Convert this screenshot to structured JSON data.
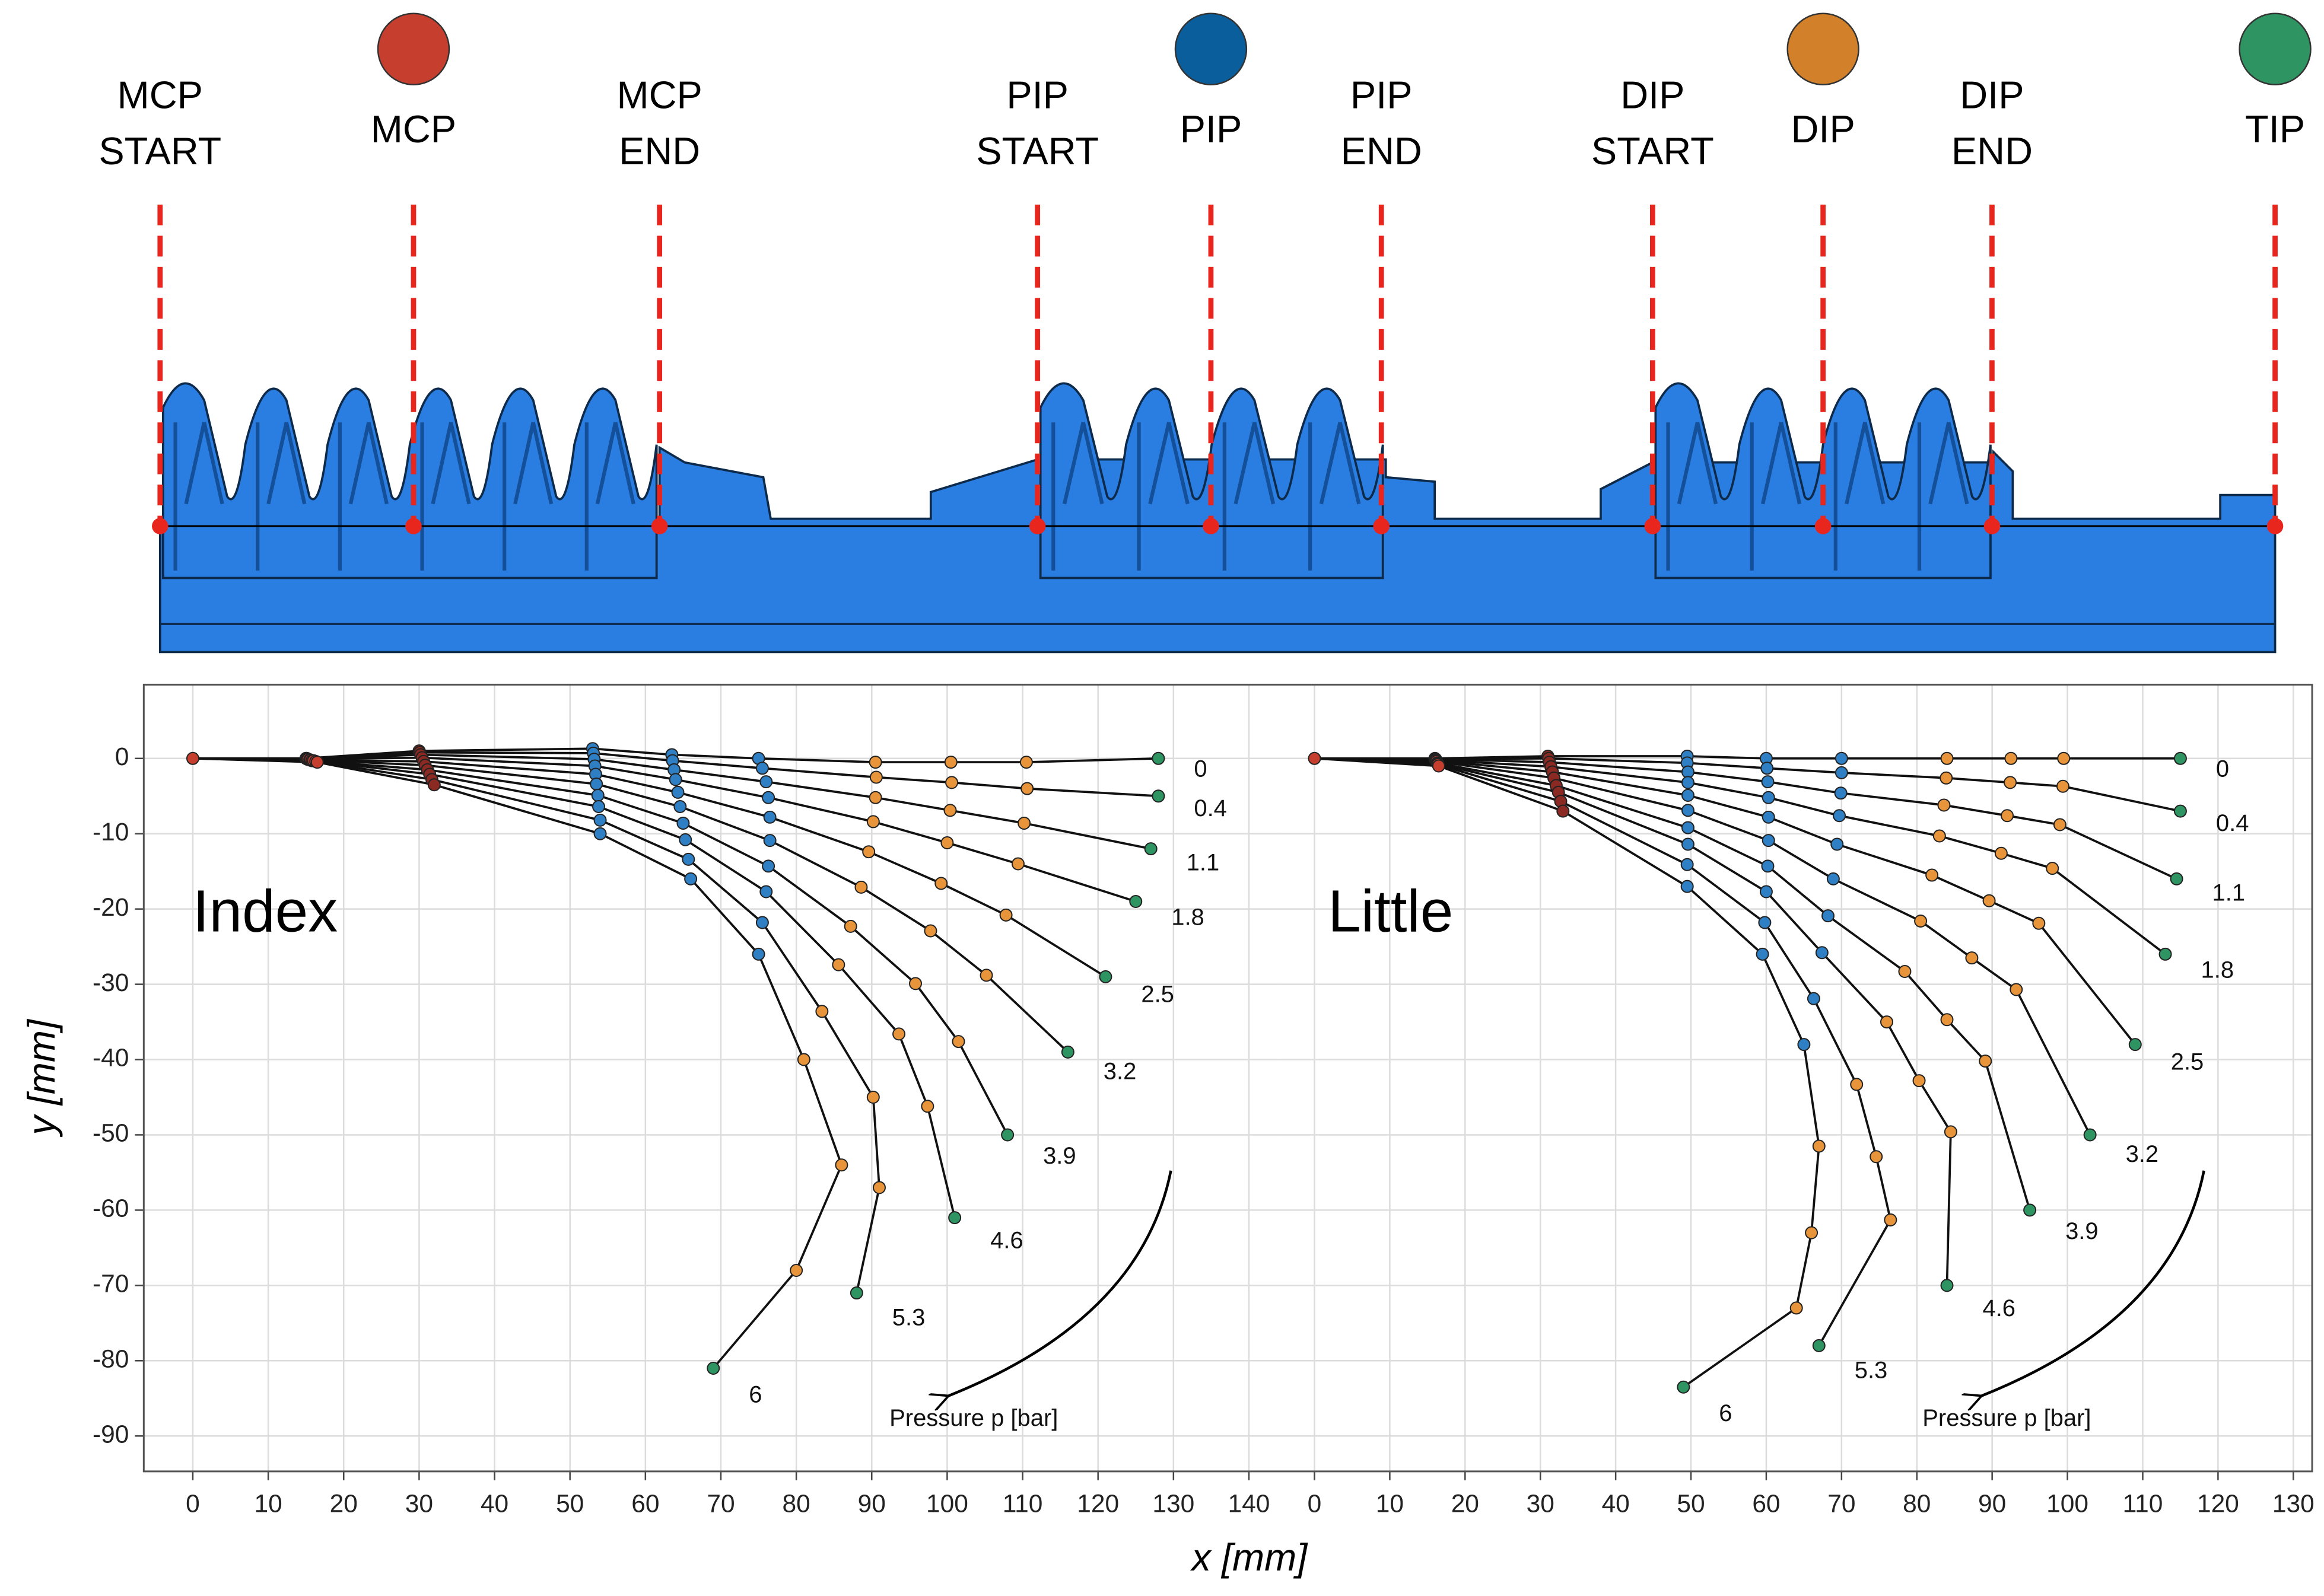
{
  "diagram": {
    "items": [
      {
        "lines": [
          "MCP",
          "START"
        ]
      },
      {
        "lines": [
          "MCP"
        ],
        "color": "#c63f2e"
      },
      {
        "lines": [
          "MCP",
          "END"
        ]
      },
      {
        "lines": [
          "PIP",
          "START"
        ]
      },
      {
        "lines": [
          "PIP"
        ],
        "color": "#0a5e9c"
      },
      {
        "lines": [
          "PIP",
          "END"
        ]
      },
      {
        "lines": [
          "DIP",
          "START"
        ]
      },
      {
        "lines": [
          "DIP"
        ],
        "color": "#d2802a"
      },
      {
        "lines": [
          "DIP",
          "END"
        ]
      },
      {
        "lines": [
          "TIP"
        ],
        "color": "#2e9462"
      }
    ]
  },
  "xlabel": "x [mm]",
  "ylabel": "y [mm]",
  "chart_data": [
    {
      "type": "scatter",
      "label": "Index",
      "annotation": "Pressure p [bar]",
      "xlim": [
        -6.5,
        144
      ],
      "ylim": [
        -94.7,
        9.8
      ],
      "xticks": [
        0,
        10,
        20,
        30,
        40,
        50,
        60,
        70,
        80,
        90,
        100,
        110,
        120,
        130,
        140
      ],
      "yticks": [
        0,
        -10,
        -20,
        -30,
        -40,
        -50,
        -60,
        -70,
        -80,
        -90
      ],
      "grid": true,
      "point_labels": [
        0,
        0.4,
        1.1,
        1.8,
        2.5,
        3.2,
        3.9,
        4.6,
        5.3,
        6
      ],
      "series": [
        {
          "color": "#c63f2e",
          "x": [
            0
          ],
          "values": [
            0
          ]
        },
        {
          "color": "#c63f2e",
          "x": [
            15,
            15.1,
            15.2,
            15.3,
            15.5,
            15.6,
            15.8,
            16,
            16.3,
            16.5
          ],
          "values": [
            0,
            0,
            -0.1,
            -0.1,
            -0.2,
            -0.2,
            -0.3,
            -0.3,
            -0.4,
            -0.5
          ]
        },
        {
          "color": "#8a2a22",
          "x": [
            30,
            30.1,
            30.2,
            30.4,
            30.6,
            30.8,
            31.1,
            31.4,
            31.7,
            32
          ],
          "values": [
            1,
            0.8,
            0.5,
            0.1,
            -0.4,
            -0.9,
            -1.5,
            -2.1,
            -2.8,
            -3.5
          ]
        },
        {
          "color": "#2f7fc4",
          "x": [
            53,
            53.1,
            53.2,
            53.3,
            53.4,
            53.5,
            53.7,
            53.8,
            54,
            54
          ],
          "values": [
            1.3,
            0.7,
            -0.1,
            -1,
            -2.1,
            -3.4,
            -4.9,
            -6.4,
            -8.2,
            -10
          ]
        },
        {
          "color": "#2f7fc4",
          "x": [
            63.5,
            63.6,
            63.8,
            64,
            64.3,
            64.6,
            65,
            65.3,
            65.7,
            66
          ],
          "values": [
            0.5,
            -0.3,
            -1.5,
            -2.8,
            -4.5,
            -6.4,
            -8.6,
            -10.8,
            -13.4,
            -16
          ]
        },
        {
          "color": "#2f7fc4",
          "x": [
            75,
            75.5,
            76,
            76.3,
            76.5,
            76.5,
            76.3,
            76,
            75.5,
            75
          ],
          "values": [
            0,
            -1.3,
            -3.1,
            -5.2,
            -7.8,
            -10.9,
            -14.3,
            -17.7,
            -21.8,
            -26
          ]
        },
        {
          "color": "#e8943a",
          "x": [
            90.5,
            90.6,
            90.5,
            90.2,
            89.6,
            88.6,
            87.2,
            85.6,
            83.4,
            81
          ],
          "values": [
            -0.5,
            -2.5,
            -5.2,
            -8.4,
            -12.4,
            -17.1,
            -22.3,
            -27.4,
            -33.6,
            -40
          ]
        },
        {
          "color": "#e8943a",
          "x": [
            100.5,
            100.6,
            100.4,
            100,
            99.2,
            97.8,
            95.8,
            93.6,
            90.2,
            86
          ],
          "values": [
            -0.5,
            -3.2,
            -6.9,
            -11.2,
            -16.6,
            -22.9,
            -29.9,
            -36.6,
            -45,
            -54
          ]
        },
        {
          "color": "#e8943a",
          "x": [
            110.5,
            110.6,
            110.2,
            109.4,
            107.8,
            105.2,
            101.5,
            97.4,
            91,
            80
          ],
          "values": [
            -0.5,
            -4,
            -8.6,
            -14,
            -20.8,
            -28.8,
            -37.6,
            -46.2,
            -57,
            -68
          ]
        },
        {
          "color": "#2e9462",
          "x": [
            128,
            128,
            127,
            125,
            121,
            116,
            108,
            101,
            88,
            69
          ],
          "values": [
            0,
            -5,
            -12,
            -19,
            -29,
            -39,
            -50,
            -61,
            -71,
            -81
          ]
        }
      ]
    },
    {
      "type": "scatter",
      "label": "Little",
      "annotation": "Pressure p [bar]",
      "xlim": [
        -4.7,
        132.5
      ],
      "ylim": [
        -94.7,
        9.8
      ],
      "xticks": [
        0,
        10,
        20,
        30,
        40,
        50,
        60,
        70,
        80,
        90,
        100,
        110,
        120,
        130
      ],
      "grid": true,
      "point_labels": [
        0,
        0.4,
        1.1,
        1.8,
        2.5,
        3.2,
        3.9,
        4.6,
        5.3,
        6
      ],
      "series": [
        {
          "color": "#c63f2e",
          "x": [
            0
          ],
          "values": [
            0
          ]
        },
        {
          "color": "#c63f2e",
          "x": [
            16,
            16,
            16.1,
            16.1,
            16.2,
            16.2,
            16.3,
            16.4,
            16.4,
            16.5
          ],
          "values": [
            0,
            -0.1,
            -0.1,
            -0.2,
            -0.3,
            -0.4,
            -0.6,
            -0.7,
            -0.8,
            -1
          ]
        },
        {
          "color": "#8a2a22",
          "x": [
            31,
            31.1,
            31.2,
            31.4,
            31.6,
            31.8,
            32.1,
            32.4,
            32.7,
            33
          ],
          "values": [
            0.3,
            0,
            -0.5,
            -1.1,
            -1.8,
            -2.6,
            -3.6,
            -4.5,
            -5.7,
            -7
          ]
        },
        {
          "color": "#2f7fc4",
          "x": [
            49.5,
            49.5,
            49.6,
            49.6,
            49.6,
            49.6,
            49.6,
            49.6,
            49.5,
            49.5
          ],
          "values": [
            0.3,
            -0.6,
            -1.8,
            -3.2,
            -4.9,
            -6.9,
            -9.2,
            -11.4,
            -14.1,
            -17
          ]
        },
        {
          "color": "#2f7fc4",
          "x": [
            60,
            60.1,
            60.2,
            60.3,
            60.3,
            60.3,
            60.2,
            60,
            59.8,
            59.5
          ],
          "values": [
            0,
            -1.3,
            -3.1,
            -5.2,
            -7.8,
            -10.9,
            -14.3,
            -17.7,
            -21.8,
            -26
          ]
        },
        {
          "color": "#2f7fc4",
          "x": [
            70,
            70,
            69.9,
            69.7,
            69.4,
            68.9,
            68.2,
            67.4,
            66.3,
            65
          ],
          "values": [
            0,
            -1.9,
            -4.6,
            -7.6,
            -11.4,
            -16,
            -20.9,
            -25.8,
            -31.9,
            -38
          ]
        },
        {
          "color": "#e8943a",
          "x": [
            84,
            83.9,
            83.6,
            83,
            82,
            80.5,
            78.4,
            76,
            72,
            67
          ],
          "values": [
            0,
            -2.6,
            -6.2,
            -10.3,
            -15.5,
            -21.6,
            -28.3,
            -35,
            -43.3,
            -51.5
          ]
        },
        {
          "color": "#e8943a",
          "x": [
            92.5,
            92.4,
            92,
            91.2,
            89.6,
            87.3,
            84,
            80.3,
            74.6,
            66
          ],
          "values": [
            0,
            -3.2,
            -7.6,
            -12.6,
            -18.9,
            -26.5,
            -34.7,
            -42.8,
            -52.9,
            -63
          ]
        },
        {
          "color": "#e8943a",
          "x": [
            99.5,
            99.4,
            99,
            98,
            96.2,
            93.2,
            89.1,
            84.5,
            76.5,
            64
          ],
          "values": [
            0,
            -3.7,
            -8.8,
            -14.6,
            -21.9,
            -30.7,
            -40.2,
            -49.6,
            -61.3,
            -73
          ]
        },
        {
          "color": "#2e9462",
          "x": [
            115,
            115,
            114.5,
            113,
            109,
            103,
            95,
            84,
            67,
            49
          ],
          "values": [
            0,
            -7,
            -16,
            -26,
            -38,
            -50,
            -60,
            -70,
            -78,
            -83.5
          ]
        }
      ]
    }
  ]
}
